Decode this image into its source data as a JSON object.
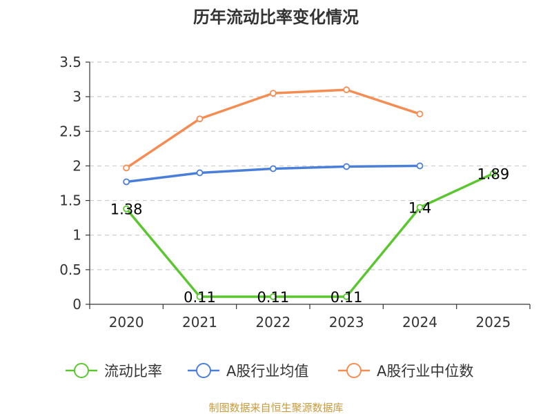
{
  "chart_data": {
    "type": "line",
    "title": "历年流动比率变化情况",
    "categories": [
      "2020",
      "2021",
      "2022",
      "2023",
      "2024",
      "2025"
    ],
    "ylim": [
      0,
      3.5
    ],
    "yticks": [
      "0",
      "0.5",
      "1",
      "1.5",
      "2",
      "2.5",
      "3",
      "3.5"
    ],
    "grid": true,
    "legend_position": "bottom",
    "series": [
      {
        "name": "流动比率",
        "color": "#5cc631",
        "values": [
          1.38,
          0.11,
          0.11,
          0.11,
          1.4,
          1.89
        ],
        "labels": [
          "1.38",
          "0.11",
          "0.11",
          "0.11",
          "1.4",
          "1.89"
        ]
      },
      {
        "name": "A股行业均值",
        "color": "#4a7fd9",
        "values": [
          1.77,
          1.9,
          1.96,
          1.99,
          2.0,
          null
        ]
      },
      {
        "name": "A股行业中位数",
        "color": "#f58c52",
        "values": [
          1.97,
          2.68,
          3.05,
          3.1,
          2.75,
          null
        ]
      }
    ]
  },
  "source": "制图数据来自恒生聚源数据库"
}
